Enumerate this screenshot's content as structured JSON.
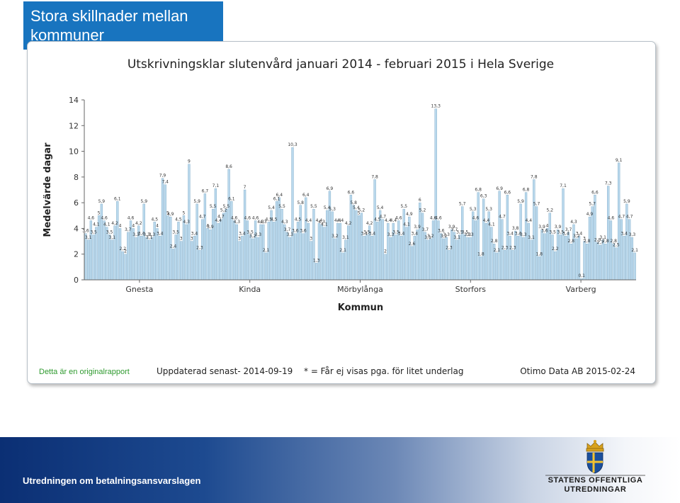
{
  "slide": {
    "title": "Stora skillnader mellan kommuner",
    "footer_text": "Utredningen om betalningsansvarslagen"
  },
  "logo": {
    "line1": "STATENS OFFENTLIGA",
    "line2": "UTREDNINGAR"
  },
  "report": {
    "original_note": "Detta är en originalrapport",
    "updated": "Uppdaterad senast- 2014-09-19",
    "footnote": "* = Får ej visas pga. för litet underlag",
    "source": "Otimo Data AB 2015-02-24"
  },
  "colors": {
    "title_bg": "#1874bf",
    "bar_fill": "#b9d8ec",
    "bar_stroke": "#7da9c6",
    "axis": "#666666",
    "note_green": "#2f9a2f"
  },
  "chart_data": {
    "type": "bar",
    "title": "Utskrivningsklar slutenvård januari 2014 - februari 2015 i Hela Sverige",
    "xlabel": "Kommun",
    "ylabel": "Medelvärde dagar",
    "ylim": [
      0,
      14
    ],
    "yticks": [
      0,
      2,
      4,
      6,
      8,
      10,
      12,
      14
    ],
    "x_tick_labels": [
      "Gnesta",
      "Kinda",
      "Mörbylånga",
      "Storfors",
      "Varberg"
    ],
    "bar_labels_shown": true,
    "grid": false,
    "legend": "none",
    "values": [
      3.6,
      3.1,
      4.6,
      3.5,
      4.1,
      5.0,
      5.9,
      4.6,
      4.1,
      3.5,
      3.1,
      4.2,
      6.1,
      4.0,
      2.2,
      2.0,
      3.7,
      4.6,
      4.0,
      3.3,
      4.2,
      3.4,
      5.9,
      3.3,
      3.1,
      3.3,
      4.5,
      4.0,
      3.4,
      7.9,
      7.4,
      5.0,
      4.9,
      2.4,
      3.5,
      4.5,
      3.0,
      5.0,
      4.3,
      9.0,
      3.0,
      3.4,
      5.9,
      2.3,
      4.7,
      6.7,
      4.0,
      3.9,
      5.5,
      7.1,
      4.4,
      4.7,
      5.2,
      5.5,
      8.6,
      6.1,
      4.6,
      4.3,
      3.0,
      3.4,
      7.0,
      4.6,
      3.5,
      3.2,
      4.6,
      3.3,
      4.3,
      4.3,
      2.1,
      4.5,
      5.4,
      4.5,
      6.1,
      6.4,
      5.5,
      4.3,
      3.7,
      3.3,
      10.3,
      3.6,
      4.5,
      5.8,
      3.6,
      6.4,
      4.4,
      3.0,
      5.5,
      1.3,
      4.4,
      4.3,
      4.1,
      5.4,
      6.9,
      5.3,
      3.2,
      4.4,
      4.4,
      2.1,
      3.1,
      4.2,
      6.6,
      5.8,
      5.4,
      5.0,
      5.2,
      3.4,
      3.5,
      4.2,
      3.4,
      7.8,
      4.5,
      5.4,
      4.7,
      2.0,
      4.4,
      3.3,
      4.4,
      3.5,
      4.6,
      3.4,
      5.5,
      4.1,
      4.9,
      2.6,
      3.4,
      3.9,
      6.0,
      5.2,
      3.7,
      3.1,
      3.2,
      4.6,
      13.3,
      4.6,
      3.6,
      3.2,
      3.3,
      2.3,
      3.9,
      3.7,
      3.1,
      3.5,
      5.7,
      3.5,
      3.3,
      3.3,
      5.3,
      4.6,
      6.8,
      1.8,
      6.3,
      4.4,
      5.3,
      4.1,
      2.8,
      2.1,
      6.9,
      4.7,
      2.3,
      6.6,
      3.4,
      2.3,
      3.8,
      3.4,
      5.9,
      3.3,
      6.8,
      4.4,
      3.1,
      7.8,
      5.7,
      1.8,
      3.9,
      3.6,
      4.0,
      5.2,
      3.5,
      2.2,
      3.9,
      3.5,
      7.1,
      3.4,
      3.7,
      2.8,
      4.3,
      3.2,
      3.4,
      0.1,
      3.0,
      2.8,
      4.9,
      5.7,
      6.6,
      2.9,
      2.7,
      3.1,
      2.8,
      7.3,
      4.6,
      2.8,
      2.5,
      9.1,
      4.7,
      3.4,
      5.9,
      4.7,
      3.3,
      2.1
    ]
  }
}
